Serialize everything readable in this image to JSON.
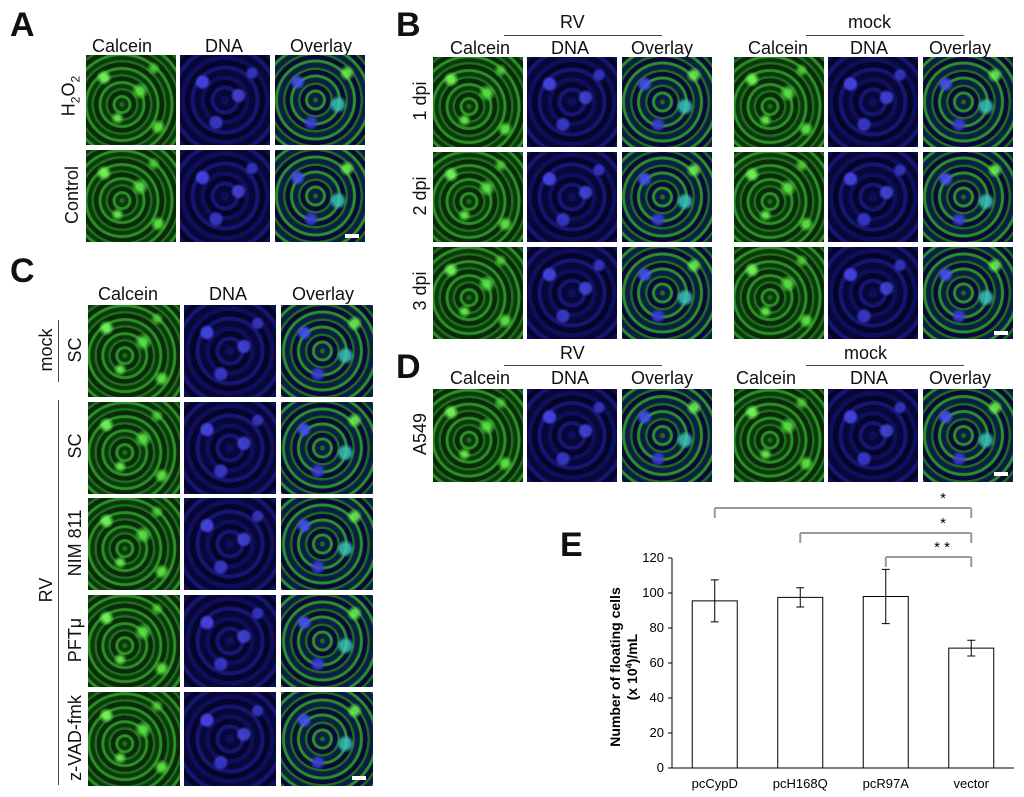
{
  "panels": {
    "a": {
      "letter": "A",
      "columns": [
        "Calcein",
        "DNA",
        "Overlay"
      ],
      "rows": [
        "H2O2",
        "Control"
      ]
    },
    "b": {
      "letter": "B",
      "groups": [
        "RV",
        "mock"
      ],
      "columns": [
        "Calcein",
        "DNA",
        "Overlay"
      ],
      "rows": [
        "1 dpi",
        "2 dpi",
        "3 dpi"
      ]
    },
    "c": {
      "letter": "C",
      "columns": [
        "Calcein",
        "DNA",
        "Overlay"
      ],
      "group_mock": "mock",
      "group_rv": "RV",
      "rows": [
        "SC",
        "SC",
        "NIM 811",
        "PFTμ",
        "z-VAD-fmk"
      ]
    },
    "d": {
      "letter": "D",
      "groups": [
        "RV",
        "mock"
      ],
      "columns": [
        "Calcein",
        "DNA",
        "Overlay"
      ],
      "rows": [
        "A549"
      ]
    },
    "e": {
      "letter": "E"
    }
  },
  "chart_data": {
    "type": "bar",
    "title": "",
    "categories": [
      "pcCypD",
      "pcH168Q",
      "pcR97A",
      "vector"
    ],
    "values": [
      95.5,
      97.5,
      98,
      68.5
    ],
    "errors": [
      12,
      5.5,
      15.5,
      4.5
    ],
    "ylabel_line1": "Number of floating cells",
    "ylabel_line2": "(x 10^4)/mL",
    "xlabel": "",
    "ylim": [
      0,
      120
    ],
    "yticks": [
      0,
      20,
      40,
      60,
      80,
      100,
      120
    ],
    "grid": false,
    "bar_color": "#ffffff",
    "bar_stroke": "#000000",
    "significance": [
      {
        "from": "pcCypD",
        "to": "vector",
        "label": "*"
      },
      {
        "from": "pcH168Q",
        "to": "vector",
        "label": "*"
      },
      {
        "from": "pcR97A",
        "to": "vector",
        "label": "* *"
      }
    ]
  }
}
